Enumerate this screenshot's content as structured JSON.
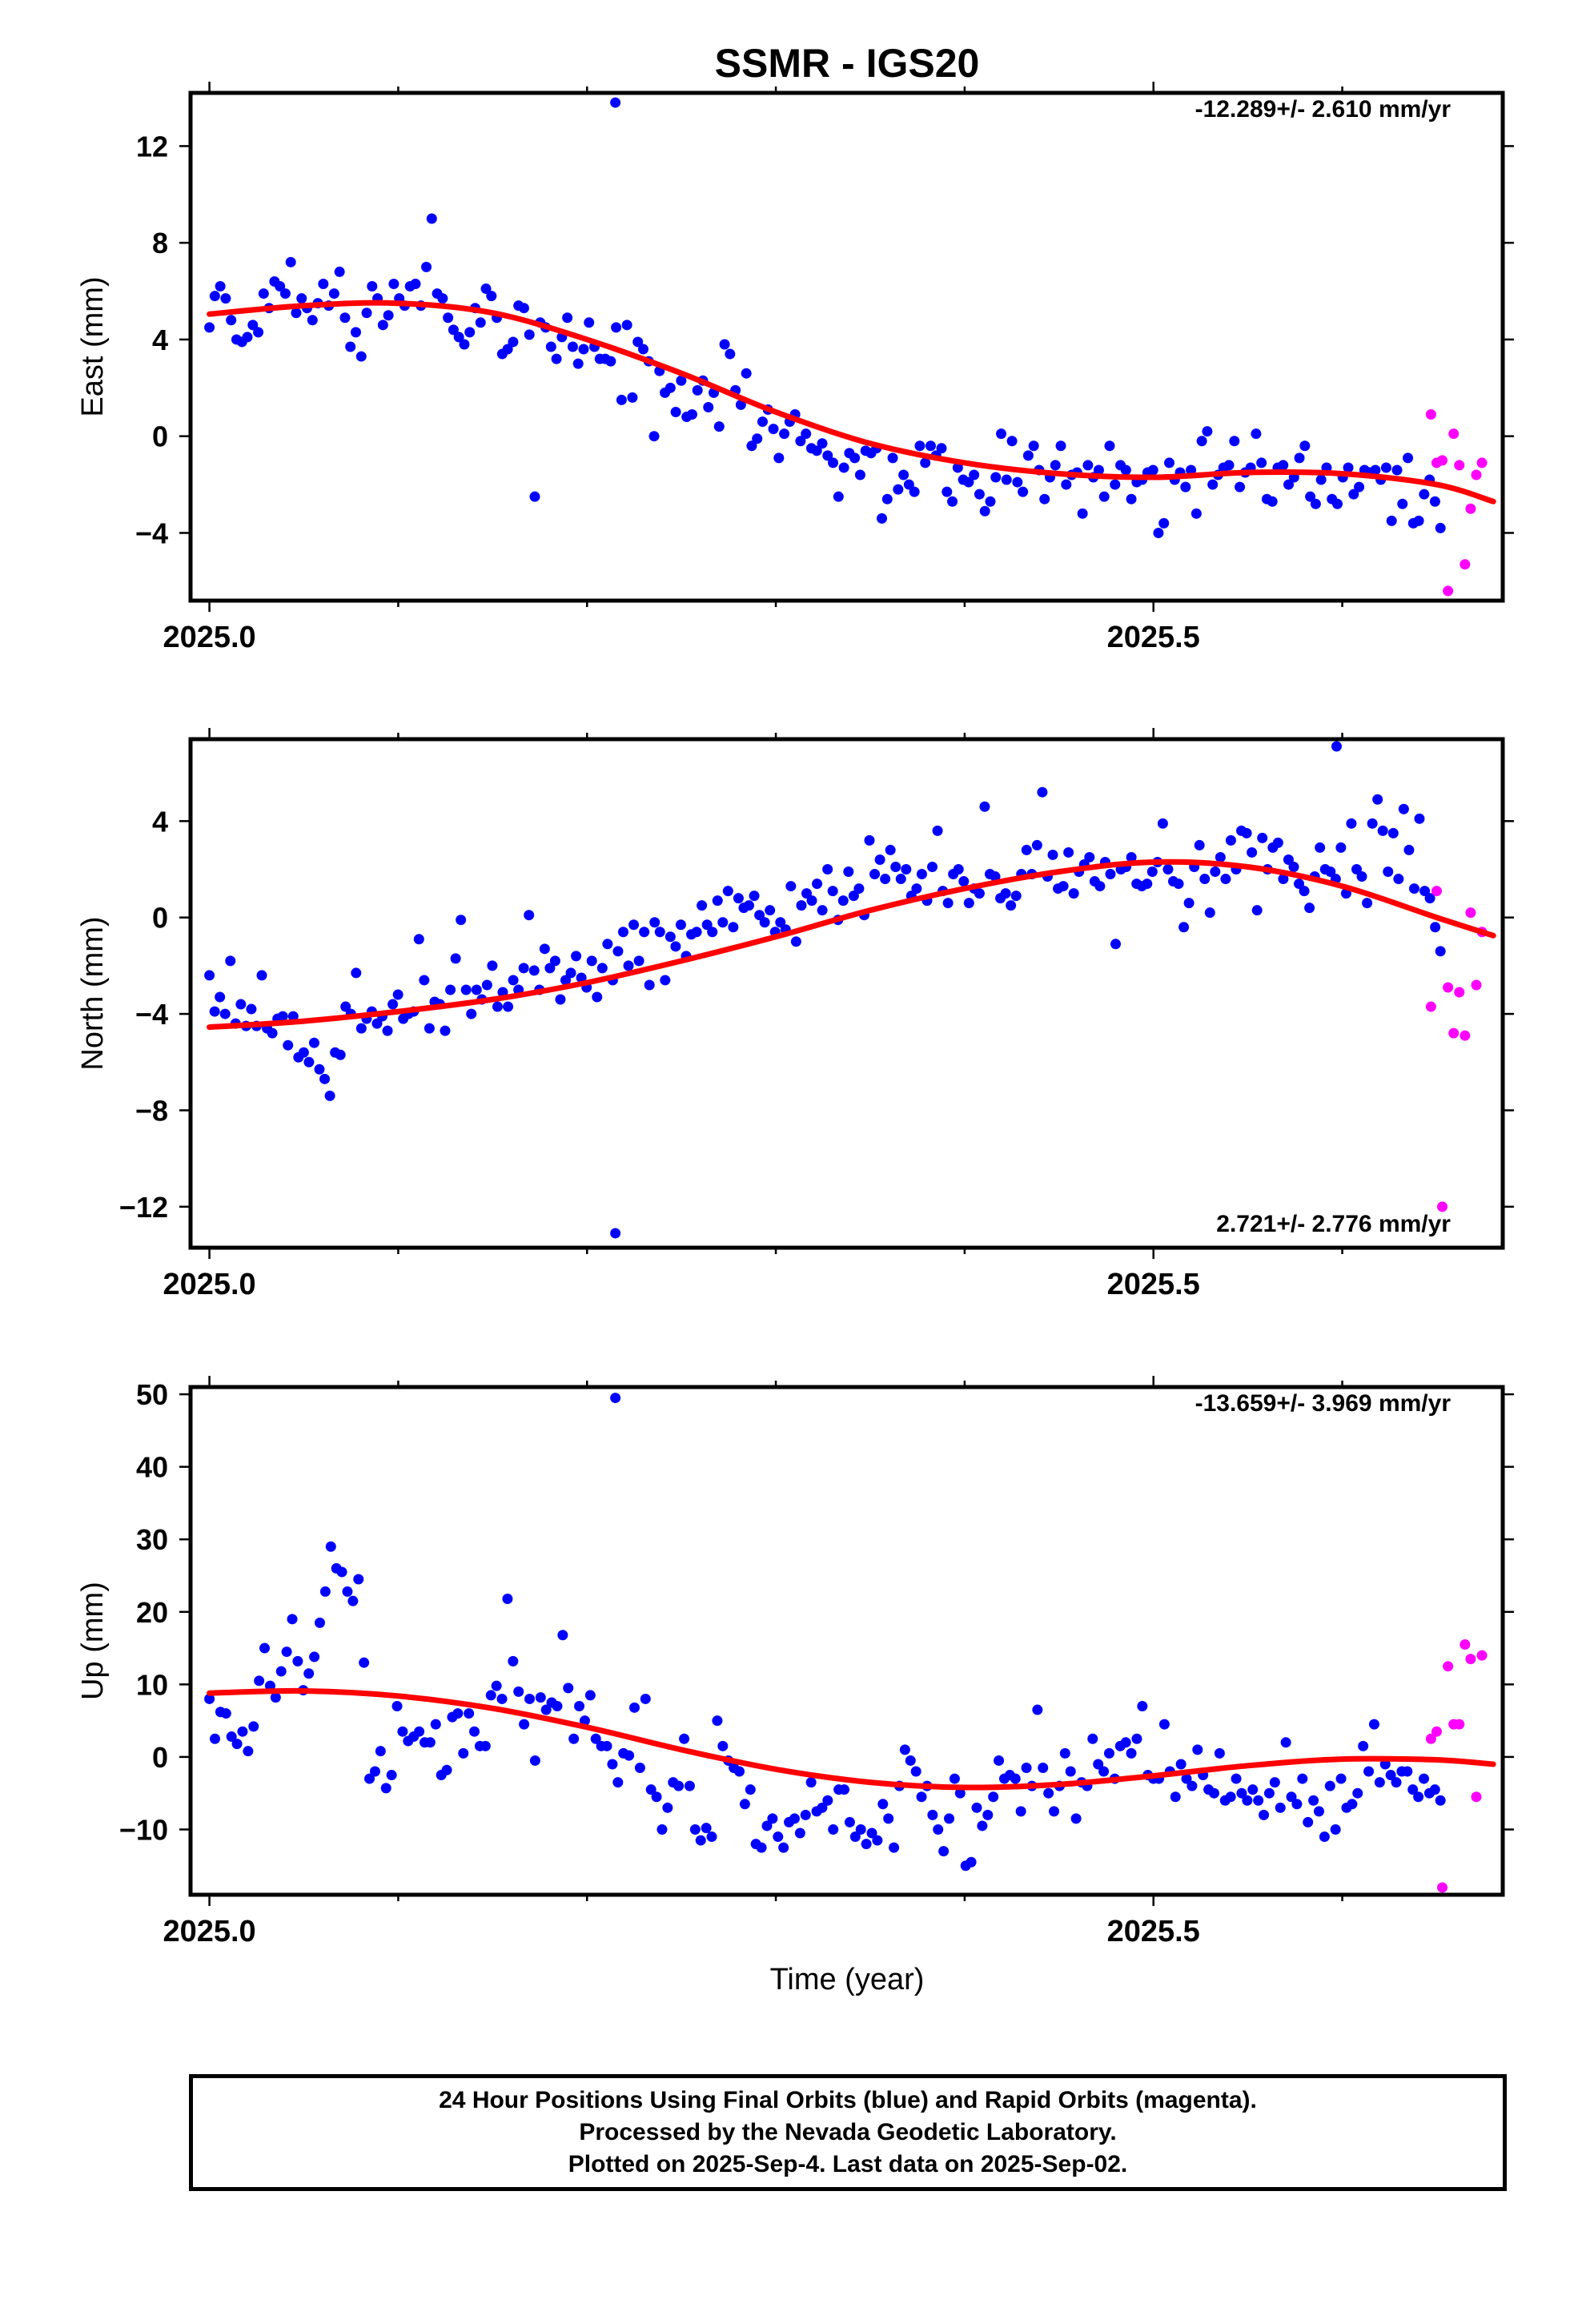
{
  "title": "SSMR - IGS20",
  "xlabel": "Time (year)",
  "footer": {
    "line1": "24 Hour Positions Using Final Orbits (blue) and Rapid Orbits (magenta).",
    "line2": "Processed by the Nevada Geodetic Laboratory.",
    "line3": "Plotted on 2025-Sep-4. Last data on 2025-Sep-02."
  },
  "colors": {
    "final": "#0000ff",
    "rapid": "#ff00ff",
    "fit": "#ff0000",
    "axis": "#000000"
  },
  "chart_data": [
    {
      "type": "scatter",
      "ylabel": "East (mm)",
      "rate": "-12.289+/- 2.610 mm/yr",
      "xlim": [
        2024.99,
        2025.685
      ],
      "ylim": [
        -6.8,
        14.2
      ],
      "yticks": [
        -4,
        0,
        4,
        8,
        12
      ],
      "xticks": [
        2025.0,
        2025.5
      ],
      "xtick_labels": [
        "2025.0",
        "2025.5"
      ],
      "grid": false,
      "final_y": [
        4.5,
        5.8,
        6.2,
        5.7,
        4.8,
        4.0,
        3.9,
        4.1,
        4.6,
        4.3,
        5.9,
        5.3,
        6.4,
        6.2,
        5.9,
        7.2,
        5.1,
        5.7,
        5.3,
        4.8,
        5.5,
        6.3,
        5.4,
        5.9,
        6.8,
        4.9,
        3.7,
        4.3,
        3.3,
        5.1,
        6.2,
        5.7,
        4.6,
        5.0,
        6.3,
        5.7,
        5.4,
        6.2,
        6.3,
        5.4,
        7.0,
        9.0,
        5.9,
        5.7,
        4.9,
        4.4,
        4.1,
        3.8,
        4.3,
        5.3,
        4.7,
        6.1,
        5.8,
        4.9,
        3.4,
        3.6,
        3.9,
        5.4,
        5.3,
        4.2,
        -2.5,
        4.7,
        4.5,
        3.7,
        3.2,
        4.1,
        4.9,
        3.7,
        3.0,
        3.6,
        4.7,
        3.7,
        3.2,
        3.2,
        3.1,
        4.5,
        1.5,
        4.6,
        1.6,
        3.9,
        3.6,
        3.1,
        0.0,
        2.7,
        1.8,
        2.0,
        1.0,
        2.3,
        0.8,
        0.9,
        1.9,
        2.3,
        1.2,
        1.8,
        0.4,
        3.8,
        3.4,
        1.9,
        1.3,
        2.6,
        -0.4,
        -0.1,
        0.6,
        1.1,
        0.3,
        -0.9,
        0.1,
        0.6,
        0.9,
        -0.2,
        0.1,
        -0.5,
        -0.6,
        -0.3,
        -0.8,
        -1.1,
        -2.5,
        -1.3,
        -0.7,
        -0.9,
        -1.6,
        -0.6,
        -0.7,
        -0.5,
        -3.4,
        -2.6,
        -0.9,
        -2.2,
        -1.6,
        -2.0,
        -2.3,
        -0.4,
        -1.1,
        -0.4,
        -0.8,
        -0.5,
        -2.3,
        -2.7,
        -1.3,
        -1.8,
        -1.9,
        -1.6,
        -2.4,
        -3.1,
        -2.7,
        -1.7,
        0.1,
        -1.8,
        -0.2,
        -1.9,
        -2.3,
        -0.8,
        -0.4,
        -1.4,
        -2.6,
        -1.7,
        -1.2,
        -0.4,
        -2.0,
        -1.6,
        -1.5,
        -3.2,
        -1.2,
        -1.7,
        -1.4,
        -2.5,
        -0.4,
        -2.0,
        -1.2,
        -1.4,
        -2.6,
        -1.9,
        -1.8,
        -1.5,
        -1.4,
        -4.0,
        -3.6,
        -1.1,
        -1.8,
        -1.5,
        -2.1,
        -1.4,
        -3.2,
        -0.2,
        0.2,
        -2.0,
        -1.6,
        -1.3,
        -1.2,
        -0.2,
        -2.1,
        -1.5,
        -1.3,
        0.1,
        -1.1,
        -2.6,
        -2.7,
        -1.3,
        -1.2,
        -2.0,
        -1.7,
        -0.9,
        -0.4,
        -2.5,
        -2.8,
        -1.8,
        -1.3,
        -2.6,
        -2.8,
        -1.7,
        -1.3,
        -2.4,
        -2.1,
        -1.4,
        -1.5,
        -1.4,
        -1.8,
        -1.3,
        -3.5,
        -1.4,
        -2.8,
        -0.9,
        -3.6,
        -3.5,
        -2.4,
        -1.8,
        -2.7,
        -3.8
      ],
      "outliers": [
        {
          "x": 2025.215,
          "y": 13.8
        }
      ],
      "rapid": [
        {
          "x": 2025.647,
          "y": 0.9
        },
        {
          "x": 2025.65,
          "y": -1.1
        },
        {
          "x": 2025.653,
          "y": -1.0
        },
        {
          "x": 2025.656,
          "y": -6.4
        },
        {
          "x": 2025.659,
          "y": 0.1
        },
        {
          "x": 2025.662,
          "y": -1.2
        },
        {
          "x": 2025.665,
          "y": -5.3
        },
        {
          "x": 2025.668,
          "y": -3.0
        },
        {
          "x": 2025.671,
          "y": -1.6
        },
        {
          "x": 2025.674,
          "y": -1.1
        }
      ],
      "fit": [
        [
          2025.0,
          5.05
        ],
        [
          2025.05,
          5.4
        ],
        [
          2025.1,
          5.5
        ],
        [
          2025.15,
          5.1
        ],
        [
          2025.2,
          4.0
        ],
        [
          2025.25,
          2.6
        ],
        [
          2025.3,
          1.0
        ],
        [
          2025.35,
          -0.3
        ],
        [
          2025.4,
          -1.1
        ],
        [
          2025.45,
          -1.55
        ],
        [
          2025.5,
          -1.7
        ],
        [
          2025.55,
          -1.5
        ],
        [
          2025.6,
          -1.55
        ],
        [
          2025.65,
          -2.0
        ],
        [
          2025.68,
          -2.7
        ]
      ]
    },
    {
      "type": "scatter",
      "ylabel": "North (mm)",
      "rate": "2.721+/- 2.776 mm/yr",
      "xlim": [
        2024.99,
        2025.685
      ],
      "ylim": [
        -13.7,
        7.4
      ],
      "yticks": [
        -12,
        -8,
        -4,
        0,
        4
      ],
      "xticks": [
        2025.0,
        2025.5
      ],
      "xtick_labels": [
        "2025.0",
        "2025.5"
      ],
      "grid": false,
      "final_y": [
        -2.4,
        -3.9,
        -3.3,
        -4.0,
        -1.8,
        -4.4,
        -3.6,
        -4.5,
        -3.8,
        -4.5,
        -2.4,
        -4.6,
        -4.8,
        -4.2,
        -4.1,
        -5.3,
        -4.1,
        -5.8,
        -5.6,
        -6.0,
        -5.2,
        -6.3,
        -6.7,
        -7.4,
        -5.6,
        -5.7,
        -3.7,
        -4.0,
        -2.3,
        -4.6,
        -4.2,
        -3.9,
        -4.4,
        -4.1,
        -4.7,
        -3.6,
        -3.2,
        -4.2,
        -4.0,
        -3.9,
        -0.9,
        -2.6,
        -4.6,
        -3.5,
        -3.6,
        -4.7,
        -3.0,
        -1.7,
        -0.1,
        -3.0,
        -4.0,
        -3.0,
        -3.4,
        -2.8,
        -2.0,
        -3.7,
        -3.1,
        -3.7,
        -2.6,
        -3.0,
        -2.1,
        0.1,
        -2.2,
        -3.0,
        -1.3,
        -2.1,
        -1.8,
        -3.4,
        -2.6,
        -2.3,
        -1.6,
        -2.5,
        -2.9,
        -1.8,
        -3.3,
        -2.1,
        -1.1,
        -2.6,
        -1.4,
        -0.6,
        -2.0,
        -0.3,
        -1.8,
        -0.6,
        -2.8,
        -0.2,
        -0.6,
        -2.6,
        -0.8,
        -1.2,
        -0.3,
        -1.6,
        -0.7,
        -0.6,
        0.5,
        -0.3,
        -0.6,
        0.7,
        -0.2,
        1.1,
        -0.4,
        0.8,
        0.4,
        0.5,
        0.9,
        0.1,
        -0.2,
        0.3,
        -0.6,
        -0.2,
        -0.5,
        1.3,
        -1.0,
        0.5,
        1.0,
        0.7,
        1.4,
        0.3,
        2.0,
        1.1,
        -0.1,
        0.7,
        1.9,
        0.9,
        1.2,
        0.1,
        3.2,
        1.8,
        2.4,
        1.6,
        2.8,
        2.1,
        1.6,
        2.0,
        0.9,
        1.2,
        1.8,
        0.7,
        2.1,
        3.6,
        1.1,
        0.6,
        1.8,
        2.0,
        1.5,
        0.6,
        1.2,
        1.0,
        4.6,
        1.8,
        1.7,
        0.8,
        1.0,
        0.5,
        0.9,
        1.8,
        2.8,
        1.8,
        3.0,
        5.2,
        1.7,
        2.6,
        1.2,
        1.3,
        2.7,
        1.0,
        1.9,
        2.2,
        2.5,
        1.5,
        1.3,
        2.3,
        1.8,
        -1.1,
        2.0,
        2.1,
        2.5,
        1.4,
        1.3,
        1.4,
        1.9,
        2.3,
        3.9,
        2.0,
        1.5,
        1.4,
        -0.4,
        0.6,
        2.1,
        3.0,
        1.6,
        0.2,
        1.9,
        2.5,
        1.6,
        3.2,
        2.0,
        3.6,
        3.5,
        2.7,
        0.3,
        3.3,
        2.0,
        2.9,
        3.1,
        1.6,
        2.4,
        2.1,
        1.4,
        1.1,
        0.4,
        1.7,
        2.9,
        2.0,
        1.9,
        1.6,
        2.9,
        1.0,
        3.9,
        2.0,
        1.7,
        0.6,
        3.9,
        4.9,
        3.6,
        1.9,
        3.5,
        1.6,
        4.5,
        2.8,
        1.2,
        4.1,
        1.1,
        0.8,
        -0.4,
        -1.4
      ],
      "outliers": [
        {
          "x": 2025.215,
          "y": -13.1
        },
        {
          "x": 2025.597,
          "y": 7.1
        }
      ],
      "rapid": [
        {
          "x": 2025.647,
          "y": -3.7
        },
        {
          "x": 2025.65,
          "y": 1.1
        },
        {
          "x": 2025.653,
          "y": -12.0
        },
        {
          "x": 2025.656,
          "y": -2.9
        },
        {
          "x": 2025.659,
          "y": -4.8
        },
        {
          "x": 2025.662,
          "y": -3.1
        },
        {
          "x": 2025.665,
          "y": -4.9
        },
        {
          "x": 2025.668,
          "y": 0.2
        },
        {
          "x": 2025.671,
          "y": -2.8
        },
        {
          "x": 2025.674,
          "y": -0.6
        }
      ],
      "fit": [
        [
          2025.0,
          -4.55
        ],
        [
          2025.05,
          -4.3
        ],
        [
          2025.1,
          -3.9
        ],
        [
          2025.15,
          -3.4
        ],
        [
          2025.2,
          -2.7
        ],
        [
          2025.25,
          -1.8
        ],
        [
          2025.3,
          -0.8
        ],
        [
          2025.35,
          0.3
        ],
        [
          2025.4,
          1.2
        ],
        [
          2025.45,
          1.9
        ],
        [
          2025.5,
          2.3
        ],
        [
          2025.55,
          2.1
        ],
        [
          2025.6,
          1.3
        ],
        [
          2025.65,
          0.0
        ],
        [
          2025.68,
          -0.75
        ]
      ]
    },
    {
      "type": "scatter",
      "ylabel": "Up (mm)",
      "rate": "-13.659+/- 3.969 mm/yr",
      "xlim": [
        2024.99,
        2025.685
      ],
      "ylim": [
        -19,
        51
      ],
      "yticks": [
        -10,
        0,
        10,
        20,
        30,
        40,
        50
      ],
      "xticks": [
        2025.0,
        2025.5
      ],
      "xtick_labels": [
        "2025.0",
        "2025.5"
      ],
      "grid": false,
      "final_y": [
        8.0,
        2.5,
        6.2,
        6.0,
        2.8,
        1.8,
        3.5,
        0.8,
        4.2,
        10.5,
        15.0,
        9.8,
        8.2,
        11.8,
        14.5,
        19.0,
        13.2,
        9.2,
        11.5,
        13.8,
        18.5,
        22.8,
        29.0,
        26.0,
        25.5,
        22.8,
        21.5,
        24.5,
        13.0,
        -3.0,
        -2.0,
        0.8,
        -4.3,
        -2.5,
        7.0,
        3.5,
        2.2,
        2.8,
        3.5,
        2.0,
        2.0,
        4.5,
        -2.5,
        -1.8,
        5.5,
        6.0,
        0.5,
        6.0,
        3.5,
        1.5,
        1.5,
        8.5,
        9.8,
        8.0,
        21.8,
        13.2,
        9.0,
        4.5,
        8.0,
        -0.5,
        8.2,
        6.5,
        7.5,
        7.0,
        16.8,
        9.5,
        2.5,
        7.0,
        5.0,
        8.5,
        2.5,
        1.5,
        1.5,
        -1.0,
        -3.5,
        0.5,
        0.2,
        6.8,
        -1.5,
        8.0,
        -4.5,
        -5.5,
        -10.0,
        -7.0,
        -3.5,
        -4.0,
        2.5,
        -4.0,
        -10.0,
        -11.5,
        -9.8,
        -11.0,
        5.0,
        1.5,
        -0.5,
        -1.5,
        -2.0,
        -6.5,
        -4.5,
        -12.0,
        -12.5,
        -9.5,
        -8.5,
        -11.0,
        -12.5,
        -9.0,
        -8.5,
        -10.5,
        -8.0,
        -3.5,
        -7.5,
        -7.0,
        -6.0,
        -10.0,
        -4.5,
        -4.5,
        -9.0,
        -11.0,
        -10.0,
        -12.0,
        -10.5,
        -11.5,
        -6.5,
        -8.5,
        -12.5,
        -4.0,
        1.0,
        -0.5,
        -2.0,
        -5.5,
        -4.0,
        -8.0,
        -10.0,
        -13.0,
        -8.5,
        -3.0,
        -5.0,
        -15.0,
        -14.5,
        -7.0,
        -9.5,
        -8.0,
        -5.5,
        -0.5,
        -3.0,
        -2.5,
        -3.0,
        -7.5,
        -1.5,
        -4.0,
        6.5,
        -1.5,
        -5.0,
        -7.5,
        -4.0,
        0.5,
        -2.0,
        -8.5,
        -3.5,
        -4.0,
        2.5,
        -1.0,
        -2.0,
        0.5,
        -3.0,
        1.5,
        2.0,
        0.5,
        2.5,
        7.0,
        -2.5,
        -3.0,
        -3.0,
        4.5,
        -2.0,
        -5.5,
        -1.0,
        -3.0,
        -4.0,
        1.0,
        -2.5,
        -4.5,
        -5.0,
        0.5,
        -6.0,
        -5.5,
        -3.0,
        -5.0,
        -6.0,
        -4.5,
        -6.0,
        -8.0,
        -5.0,
        -3.5,
        -7.0,
        2.0,
        -5.5,
        -6.5,
        -3.0,
        -9.0,
        -6.0,
        -7.5,
        -11.0,
        -4.0,
        -10.0,
        -3.0,
        -7.0,
        -6.5,
        -5.0,
        1.5,
        -2.0,
        4.5,
        -3.5,
        -1.0,
        -2.5,
        -3.5,
        -2.0,
        -2.0,
        -4.5,
        -5.5,
        -3.0,
        -5.0,
        -4.5,
        -6.0
      ],
      "outliers": [
        {
          "x": 2025.215,
          "y": 49.5
        }
      ],
      "rapid": [
        {
          "x": 2025.647,
          "y": 2.5
        },
        {
          "x": 2025.65,
          "y": 3.5
        },
        {
          "x": 2025.653,
          "y": -18.0
        },
        {
          "x": 2025.656,
          "y": 12.5
        },
        {
          "x": 2025.659,
          "y": 4.5
        },
        {
          "x": 2025.662,
          "y": 4.5
        },
        {
          "x": 2025.665,
          "y": 15.5
        },
        {
          "x": 2025.668,
          "y": 13.5
        },
        {
          "x": 2025.671,
          "y": -5.5
        },
        {
          "x": 2025.674,
          "y": 14.0
        }
      ],
      "fit": [
        [
          2025.0,
          8.8
        ],
        [
          2025.05,
          9.1
        ],
        [
          2025.1,
          8.4
        ],
        [
          2025.15,
          6.7
        ],
        [
          2025.2,
          4.1
        ],
        [
          2025.25,
          1.0
        ],
        [
          2025.3,
          -1.7
        ],
        [
          2025.35,
          -3.5
        ],
        [
          2025.4,
          -4.2
        ],
        [
          2025.45,
          -3.8
        ],
        [
          2025.5,
          -2.6
        ],
        [
          2025.55,
          -1.2
        ],
        [
          2025.6,
          -0.3
        ],
        [
          2025.65,
          -0.4
        ],
        [
          2025.68,
          -1.0
        ]
      ]
    }
  ]
}
